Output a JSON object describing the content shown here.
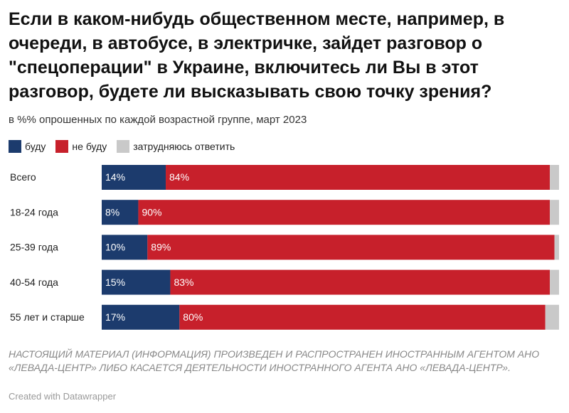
{
  "chart_data": {
    "type": "stacked-bar-horizontal",
    "title": "Если в каком-нибудь общественном месте, например, в очереди, в автобусе, в электричке, зайдет разговор о \"спецоперации\" в Украине, включитесь ли Вы в этот разговор, будете ли высказывать свою точку зрения?",
    "subtitle": "в %% опрошенных по каждой возрастной группе, март 2023",
    "categories": [
      "Всего",
      "18-24 года",
      "25-39 года",
      "40-54 года",
      "55 лет и старше"
    ],
    "series": [
      {
        "name": "буду",
        "color": "#1c3b6d",
        "values": [
          14,
          8,
          10,
          15,
          17
        ],
        "value_labels": [
          "14%",
          "8%",
          "10%",
          "15%",
          "17%"
        ]
      },
      {
        "name": "не буду",
        "color": "#c7202b",
        "values": [
          84,
          90,
          89,
          83,
          80
        ],
        "value_labels": [
          "84%",
          "90%",
          "89%",
          "83%",
          "80%"
        ]
      },
      {
        "name": "затрудняюсь ответить",
        "color": "#c9c9c9",
        "values": [
          2,
          2,
          1,
          2,
          3
        ]
      }
    ],
    "note": "НАСТОЯЩИЙ МАТЕРИАЛ (ИНФОРМАЦИЯ) ПРОИЗВЕДЕН И РАСПРОСТРАНЕН ИНОСТРАННЫМ АГЕНТОМ АНО «ЛЕВАДА-ЦЕНТР» ЛИБО КАСАЕТСЯ ДЕЯТЕЛЬНОСТИ ИНОСТРАННОГО АГЕНТА АНО «ЛЕВАДА-ЦЕНТР».",
    "credit": "Created with Datawrapper"
  }
}
